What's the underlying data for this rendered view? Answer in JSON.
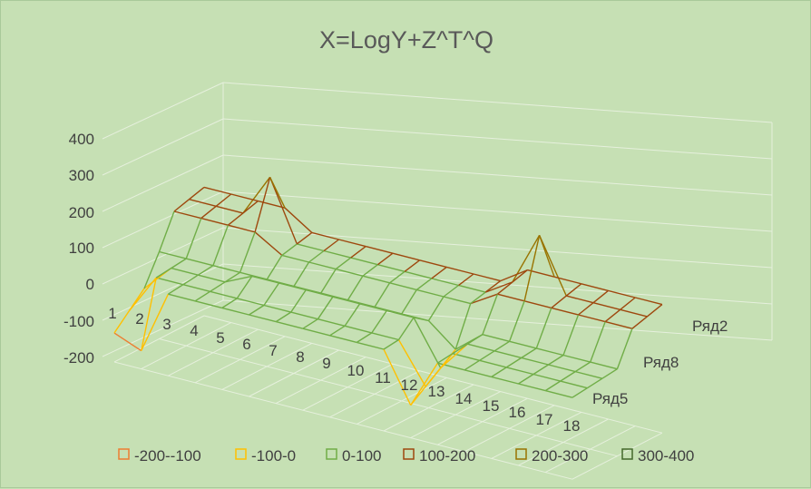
{
  "chart_data": {
    "type": "surface-wireframe-3d",
    "title": "X=LogY+Z^T^Q",
    "z_axis": {
      "ticks": [
        "400",
        "300",
        "200",
        "100",
        "0",
        "-100",
        "-200"
      ],
      "range": [
        -200,
        400
      ]
    },
    "categories": [
      "1",
      "2",
      "3",
      "4",
      "5",
      "6",
      "7",
      "8",
      "9",
      "10",
      "11",
      "12",
      "13",
      "14",
      "15",
      "16",
      "17",
      "18"
    ],
    "series_axis": [
      "Ряд2",
      "Ряд8",
      "Ряд5"
    ],
    "band_legend": [
      {
        "label": "-200--100",
        "color": "#ed7d31"
      },
      {
        "label": "-100-0",
        "color": "#ffc000"
      },
      {
        "label": "0-100",
        "color": "#70ad47"
      },
      {
        "label": "100-200",
        "color": "#9e480e"
      },
      {
        "label": "200-300",
        "color": "#997300"
      },
      {
        "label": "300-400",
        "color": "#43682b"
      }
    ],
    "grid": true,
    "legend_position": "bottom"
  }
}
